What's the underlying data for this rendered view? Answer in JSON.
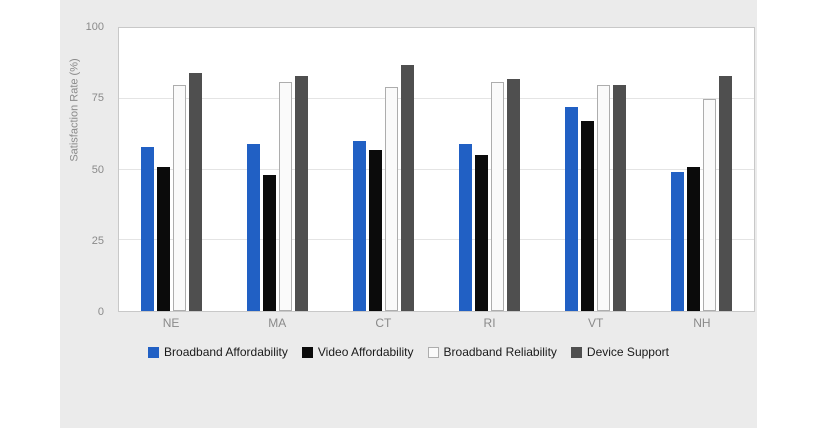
{
  "chart_data": {
    "type": "bar",
    "title": "",
    "xlabel": "",
    "ylabel": "Satisfaction Rate (%)",
    "ylim": [
      0,
      100
    ],
    "yticks": [
      0,
      25,
      50,
      75,
      100
    ],
    "grid": true,
    "legend_position": "bottom",
    "categories": [
      "NE",
      "MA",
      "CT",
      "RI",
      "VT",
      "NH"
    ],
    "series": [
      {
        "name": "Broadband Affordability",
        "color": "#2160c4",
        "values": [
          58,
          59,
          60,
          59,
          72,
          49
        ]
      },
      {
        "name": "Video Affordability",
        "color": "#0b0b0b",
        "values": [
          51,
          48,
          57,
          55,
          67,
          51
        ]
      },
      {
        "name": "Broadband Reliability",
        "color": "#fafafa",
        "border": "#adadad",
        "values": [
          80,
          81,
          79,
          81,
          80,
          75
        ]
      },
      {
        "name": "Device Support",
        "color": "#4f4f4f",
        "values": [
          84,
          83,
          87,
          82,
          80,
          83
        ]
      }
    ]
  },
  "colors": {
    "page_bg": "#ffffff",
    "panel_bg": "#ebebeb",
    "plot_bg": "#ffffff",
    "plot_border": "#c8c8c8",
    "gridline": "#e4e4e4",
    "tick_text": "#8a8a8a",
    "legend_text": "#1a1a1a"
  }
}
